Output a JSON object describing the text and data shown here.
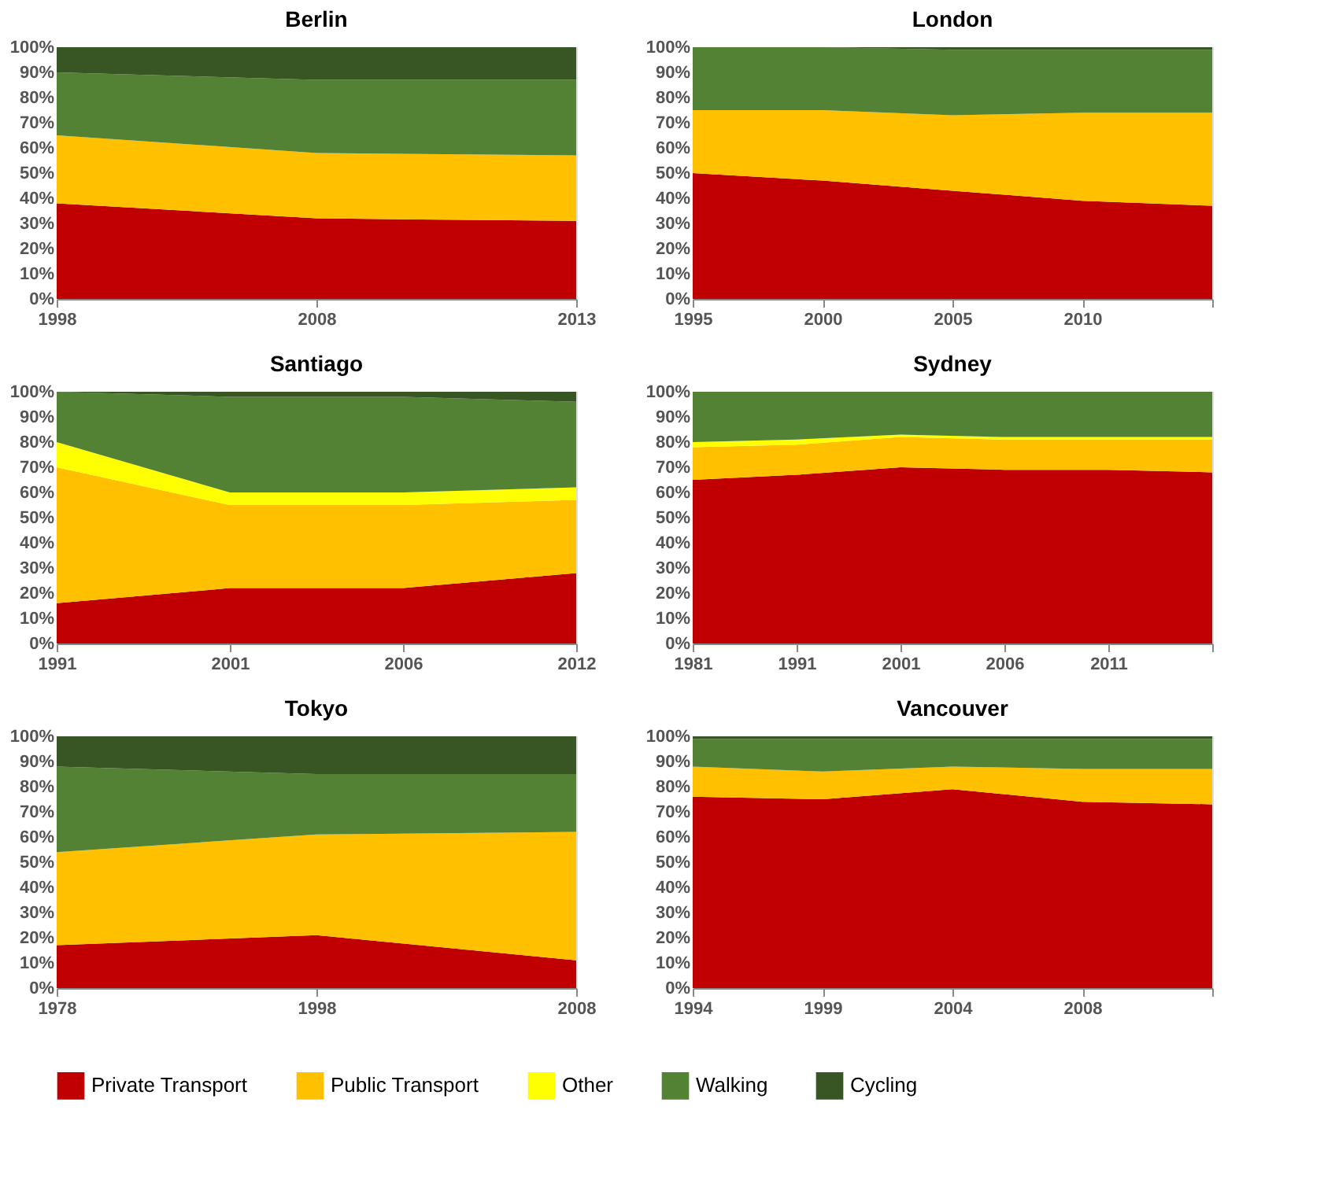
{
  "chart_data": [
    {
      "type": "area",
      "title": "Berlin",
      "stacked": true,
      "categories": [
        "1998",
        "2008",
        "2013"
      ],
      "ylim": [
        0,
        100
      ],
      "yticks": [
        {
          "value": 0,
          "label": "0%"
        },
        {
          "value": 10,
          "label": "10%"
        },
        {
          "value": 20,
          "label": "20%"
        },
        {
          "value": 30,
          "label": "30%"
        },
        {
          "value": 40,
          "label": "40%"
        },
        {
          "value": 50,
          "label": "50%"
        },
        {
          "value": 60,
          "label": "60%"
        },
        {
          "value": 70,
          "label": "70%"
        },
        {
          "value": 80,
          "label": "80%"
        },
        {
          "value": 90,
          "label": "90%"
        },
        {
          "value": 100,
          "label": "100%"
        }
      ],
      "grid": false,
      "legend": "bottom",
      "series": [
        {
          "name": "Private Transport",
          "color": "#c00000",
          "values": [
            38,
            32,
            31
          ]
        },
        {
          "name": "Public Transport",
          "color": "#ffc000",
          "values": [
            27,
            26,
            26
          ]
        },
        {
          "name": "Walking",
          "color": "#548235",
          "values": [
            25,
            29,
            30
          ]
        },
        {
          "name": "Cycling",
          "color": "#375623",
          "values": [
            10,
            13,
            13
          ]
        }
      ]
    },
    {
      "type": "area",
      "title": "London",
      "stacked": true,
      "categories": [
        "1995",
        "2000",
        "2005",
        "2010",
        null
      ],
      "ylim": [
        0,
        100
      ],
      "yticks": [
        {
          "value": 0,
          "label": "0%"
        },
        {
          "value": 10,
          "label": "10%"
        },
        {
          "value": 20,
          "label": "20%"
        },
        {
          "value": 30,
          "label": "30%"
        },
        {
          "value": 40,
          "label": "40%"
        },
        {
          "value": 50,
          "label": "50%"
        },
        {
          "value": 60,
          "label": "60%"
        },
        {
          "value": 70,
          "label": "70%"
        },
        {
          "value": 80,
          "label": "80%"
        },
        {
          "value": 90,
          "label": "90%"
        },
        {
          "value": 100,
          "label": "100%"
        }
      ],
      "grid": false,
      "legend": "bottom",
      "series": [
        {
          "name": "Private Transport",
          "color": "#c00000",
          "values": [
            50,
            47,
            43,
            39,
            37
          ]
        },
        {
          "name": "Public Transport",
          "color": "#ffc000",
          "values": [
            25,
            28,
            30,
            35,
            37
          ]
        },
        {
          "name": "Walking",
          "color": "#548235",
          "values": [
            25,
            25,
            26,
            25,
            25
          ]
        },
        {
          "name": "Cycling",
          "color": "#375623",
          "values": [
            0,
            0,
            1,
            1,
            1
          ]
        }
      ]
    },
    {
      "type": "area",
      "title": "Santiago",
      "stacked": true,
      "categories": [
        "1991",
        "2001",
        "2006",
        "2012"
      ],
      "ylim": [
        0,
        100
      ],
      "yticks": [
        {
          "value": 0,
          "label": "0%"
        },
        {
          "value": 10,
          "label": "10%"
        },
        {
          "value": 20,
          "label": "20%"
        },
        {
          "value": 30,
          "label": "30%"
        },
        {
          "value": 40,
          "label": "40%"
        },
        {
          "value": 50,
          "label": "50%"
        },
        {
          "value": 60,
          "label": "60%"
        },
        {
          "value": 70,
          "label": "70%"
        },
        {
          "value": 80,
          "label": "80%"
        },
        {
          "value": 90,
          "label": "90%"
        },
        {
          "value": 100,
          "label": "100%"
        }
      ],
      "grid": false,
      "legend": "bottom",
      "series": [
        {
          "name": "Private Transport",
          "color": "#c00000",
          "values": [
            16,
            22,
            22,
            28
          ]
        },
        {
          "name": "Public Transport",
          "color": "#ffc000",
          "values": [
            54,
            33,
            33,
            29
          ]
        },
        {
          "name": "Other",
          "color": "#ffff00",
          "values": [
            10,
            5,
            5,
            5
          ]
        },
        {
          "name": "Walking",
          "color": "#548235",
          "values": [
            20,
            38,
            38,
            34
          ]
        },
        {
          "name": "Cycling",
          "color": "#375623",
          "values": [
            0,
            2,
            2,
            4
          ]
        }
      ]
    },
    {
      "type": "area",
      "title": "Sydney",
      "stacked": true,
      "categories": [
        "1981",
        "1991",
        "2001",
        "2006",
        "2011",
        null
      ],
      "ylim": [
        0,
        100
      ],
      "yticks": [
        {
          "value": 0,
          "label": "0%"
        },
        {
          "value": 10,
          "label": "10%"
        },
        {
          "value": 20,
          "label": "20%"
        },
        {
          "value": 30,
          "label": "30%"
        },
        {
          "value": 40,
          "label": "40%"
        },
        {
          "value": 50,
          "label": "50%"
        },
        {
          "value": 60,
          "label": "60%"
        },
        {
          "value": 70,
          "label": "70%"
        },
        {
          "value": 80,
          "label": "80%"
        },
        {
          "value": 90,
          "label": "90%"
        },
        {
          "value": 100,
          "label": "100%"
        }
      ],
      "grid": false,
      "legend": "bottom",
      "series": [
        {
          "name": "Private Transport",
          "color": "#c00000",
          "values": [
            65,
            67,
            70,
            69,
            69,
            68
          ]
        },
        {
          "name": "Public Transport",
          "color": "#ffc000",
          "values": [
            13,
            12,
            12,
            12,
            12,
            13
          ]
        },
        {
          "name": "Other",
          "color": "#ffff00",
          "values": [
            2,
            2,
            1,
            1,
            1,
            1
          ]
        },
        {
          "name": "Walking",
          "color": "#548235",
          "values": [
            20,
            19,
            17,
            18,
            18,
            18
          ]
        }
      ]
    },
    {
      "type": "area",
      "title": "Tokyo",
      "stacked": true,
      "categories": [
        "1978",
        "1998",
        "2008"
      ],
      "ylim": [
        0,
        100
      ],
      "yticks": [
        {
          "value": 0,
          "label": "0%"
        },
        {
          "value": 10,
          "label": "10%"
        },
        {
          "value": 20,
          "label": "20%"
        },
        {
          "value": 30,
          "label": "30%"
        },
        {
          "value": 40,
          "label": "40%"
        },
        {
          "value": 50,
          "label": "50%"
        },
        {
          "value": 60,
          "label": "60%"
        },
        {
          "value": 70,
          "label": "70%"
        },
        {
          "value": 80,
          "label": "80%"
        },
        {
          "value": 90,
          "label": "90%"
        },
        {
          "value": 100,
          "label": "100%"
        }
      ],
      "grid": false,
      "legend": "bottom",
      "series": [
        {
          "name": "Private Transport",
          "color": "#c00000",
          "values": [
            17,
            21,
            11
          ]
        },
        {
          "name": "Public Transport",
          "color": "#ffc000",
          "values": [
            37,
            40,
            51
          ]
        },
        {
          "name": "Walking",
          "color": "#548235",
          "values": [
            34,
            24,
            23
          ]
        },
        {
          "name": "Cycling",
          "color": "#375623",
          "values": [
            12,
            15,
            15
          ]
        }
      ]
    },
    {
      "type": "area",
      "title": "Vancouver",
      "stacked": true,
      "categories": [
        "1994",
        "1999",
        "2004",
        "2008",
        null
      ],
      "ylim": [
        0,
        100
      ],
      "yticks": [
        {
          "value": 0,
          "label": "0%"
        },
        {
          "value": 10,
          "label": "10%"
        },
        {
          "value": 20,
          "label": "20%"
        },
        {
          "value": 30,
          "label": "30%"
        },
        {
          "value": 40,
          "label": "40%"
        },
        {
          "value": 50,
          "label": "50%"
        },
        {
          "value": 60,
          "label": "60%"
        },
        {
          "value": 70,
          "label": "70%"
        },
        {
          "value": 80,
          "label": "80%"
        },
        {
          "value": 90,
          "label": "90%"
        },
        {
          "value": 100,
          "label": "100%"
        }
      ],
      "grid": false,
      "legend": "bottom",
      "series": [
        {
          "name": "Private Transport",
          "color": "#c00000",
          "values": [
            76,
            75,
            79,
            74,
            73
          ]
        },
        {
          "name": "Public Transport",
          "color": "#ffc000",
          "values": [
            12,
            11,
            9,
            13,
            14
          ]
        },
        {
          "name": "Walking",
          "color": "#548235",
          "values": [
            11,
            13,
            11,
            12,
            12
          ]
        },
        {
          "name": "Cycling",
          "color": "#375623",
          "values": [
            1,
            1,
            1,
            1,
            1
          ]
        }
      ]
    }
  ]
}
